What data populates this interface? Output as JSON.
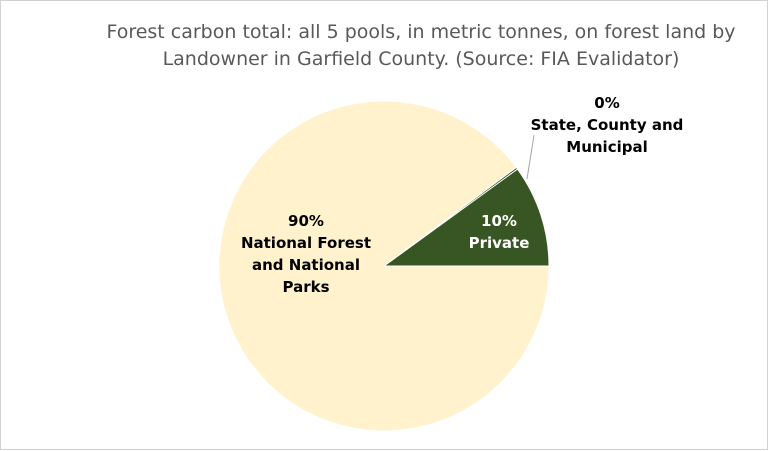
{
  "chart_data": {
    "type": "pie",
    "title": "Forest carbon total: all 5 pools, in metric tonnes, on forest land by Landowner in Garfield County.  (Source: FIA Evalidator)",
    "slices": [
      {
        "name": "Private",
        "value": 10,
        "percent_label": "10%",
        "label_lines": [
          "Private"
        ],
        "color": "#375623",
        "label_color": "#ffffff"
      },
      {
        "name": "State, County and Municipal",
        "value": 0.2,
        "percent_label": "0%",
        "label_lines": [
          "State, County and",
          "Municipal"
        ],
        "color": "#375623",
        "label_color": "#000000"
      },
      {
        "name": "National Forest and National Parks",
        "value": 89.8,
        "percent_label": "90%",
        "label_lines": [
          "National Forest",
          "and National",
          "Parks"
        ],
        "color": "#fff2cc",
        "label_color": "#000000"
      }
    ],
    "legend": "none",
    "start": "right, counterclockwise"
  }
}
